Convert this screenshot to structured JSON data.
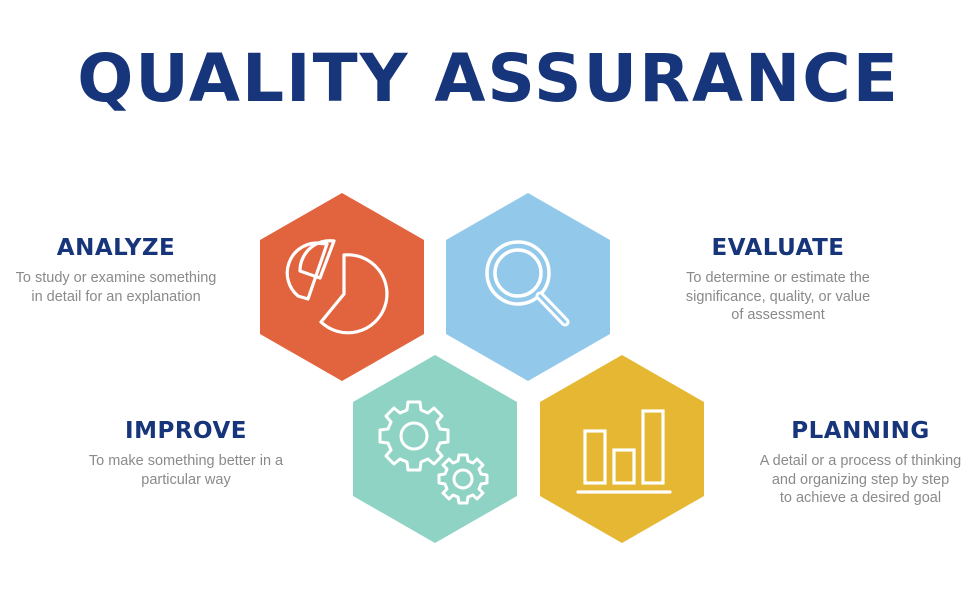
{
  "title": "QUALITY ASSURANCE",
  "colors": {
    "title": "#17357a",
    "analyze": "#e2643e",
    "evaluate": "#92c9ea",
    "improve": "#8fd3c4",
    "planning": "#e5b732"
  },
  "items": [
    {
      "key": "analyze",
      "heading": "ANALYZE",
      "lines": [
        "To study or examine something",
        "in detail for an explanation"
      ],
      "icon": "pie-chart-icon"
    },
    {
      "key": "evaluate",
      "heading": "EVALUATE",
      "lines": [
        "To determine or estimate the",
        "significance, quality, or value",
        "of assessment"
      ],
      "icon": "magnifier-icon"
    },
    {
      "key": "improve",
      "heading": "IMPROVE",
      "lines": [
        "To make something better in a",
        "particular way"
      ],
      "icon": "gears-icon"
    },
    {
      "key": "planning",
      "heading": "PLANNING",
      "lines": [
        "A detail or a process of thinking",
        "and organizing step by step",
        "to achieve a desired goal"
      ],
      "icon": "bar-chart-icon"
    }
  ]
}
